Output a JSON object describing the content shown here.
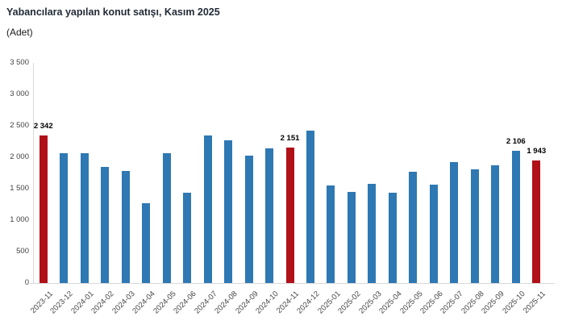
{
  "header": {
    "title": "Yabancılara yapılan konut satışı, Kasım 2025",
    "units": "(Adet)"
  },
  "chart_data": {
    "type": "bar",
    "title": "Yabancılara yapılan konut satışı, Kasım 2025",
    "subtitle": "(Adet)",
    "xlabel": "",
    "ylabel": "Adet",
    "ylim": [
      0,
      3500
    ],
    "ytick_step": 500,
    "ytick_labels": [
      "0",
      "500",
      "1 000",
      "1 500",
      "2 000",
      "2 500",
      "3 000",
      "3 500"
    ],
    "grid": false,
    "legend": "none",
    "bar_color": "#2e78b4",
    "highlight_color": "#b01118",
    "highlighted_categories": [
      "2023-11",
      "2024-11",
      "2025-11"
    ],
    "categories": [
      "2023-11",
      "2023-12",
      "2024-01",
      "2024-02",
      "2024-03",
      "2024-04",
      "2024-05",
      "2024-06",
      "2024-07",
      "2024-08",
      "2024-09",
      "2024-10",
      "2024-11",
      "2024-12",
      "2025-01",
      "2025-02",
      "2025-03",
      "2025-04",
      "2025-05",
      "2025-06",
      "2025-07",
      "2025-08",
      "2025-09",
      "2025-10",
      "2025-11"
    ],
    "values": [
      2342,
      2065,
      2065,
      1850,
      1780,
      1270,
      2060,
      1435,
      2350,
      2265,
      2030,
      2135,
      2151,
      2425,
      1550,
      1450,
      1580,
      1435,
      1770,
      1560,
      1920,
      1810,
      1875,
      2106,
      1943
    ],
    "data_labels": [
      {
        "category": "2023-11",
        "text": "2 342"
      },
      {
        "category": "2024-11",
        "text": "2 151"
      },
      {
        "category": "2025-10",
        "text": "2 106"
      },
      {
        "category": "2025-11",
        "text": "1 943"
      }
    ]
  }
}
